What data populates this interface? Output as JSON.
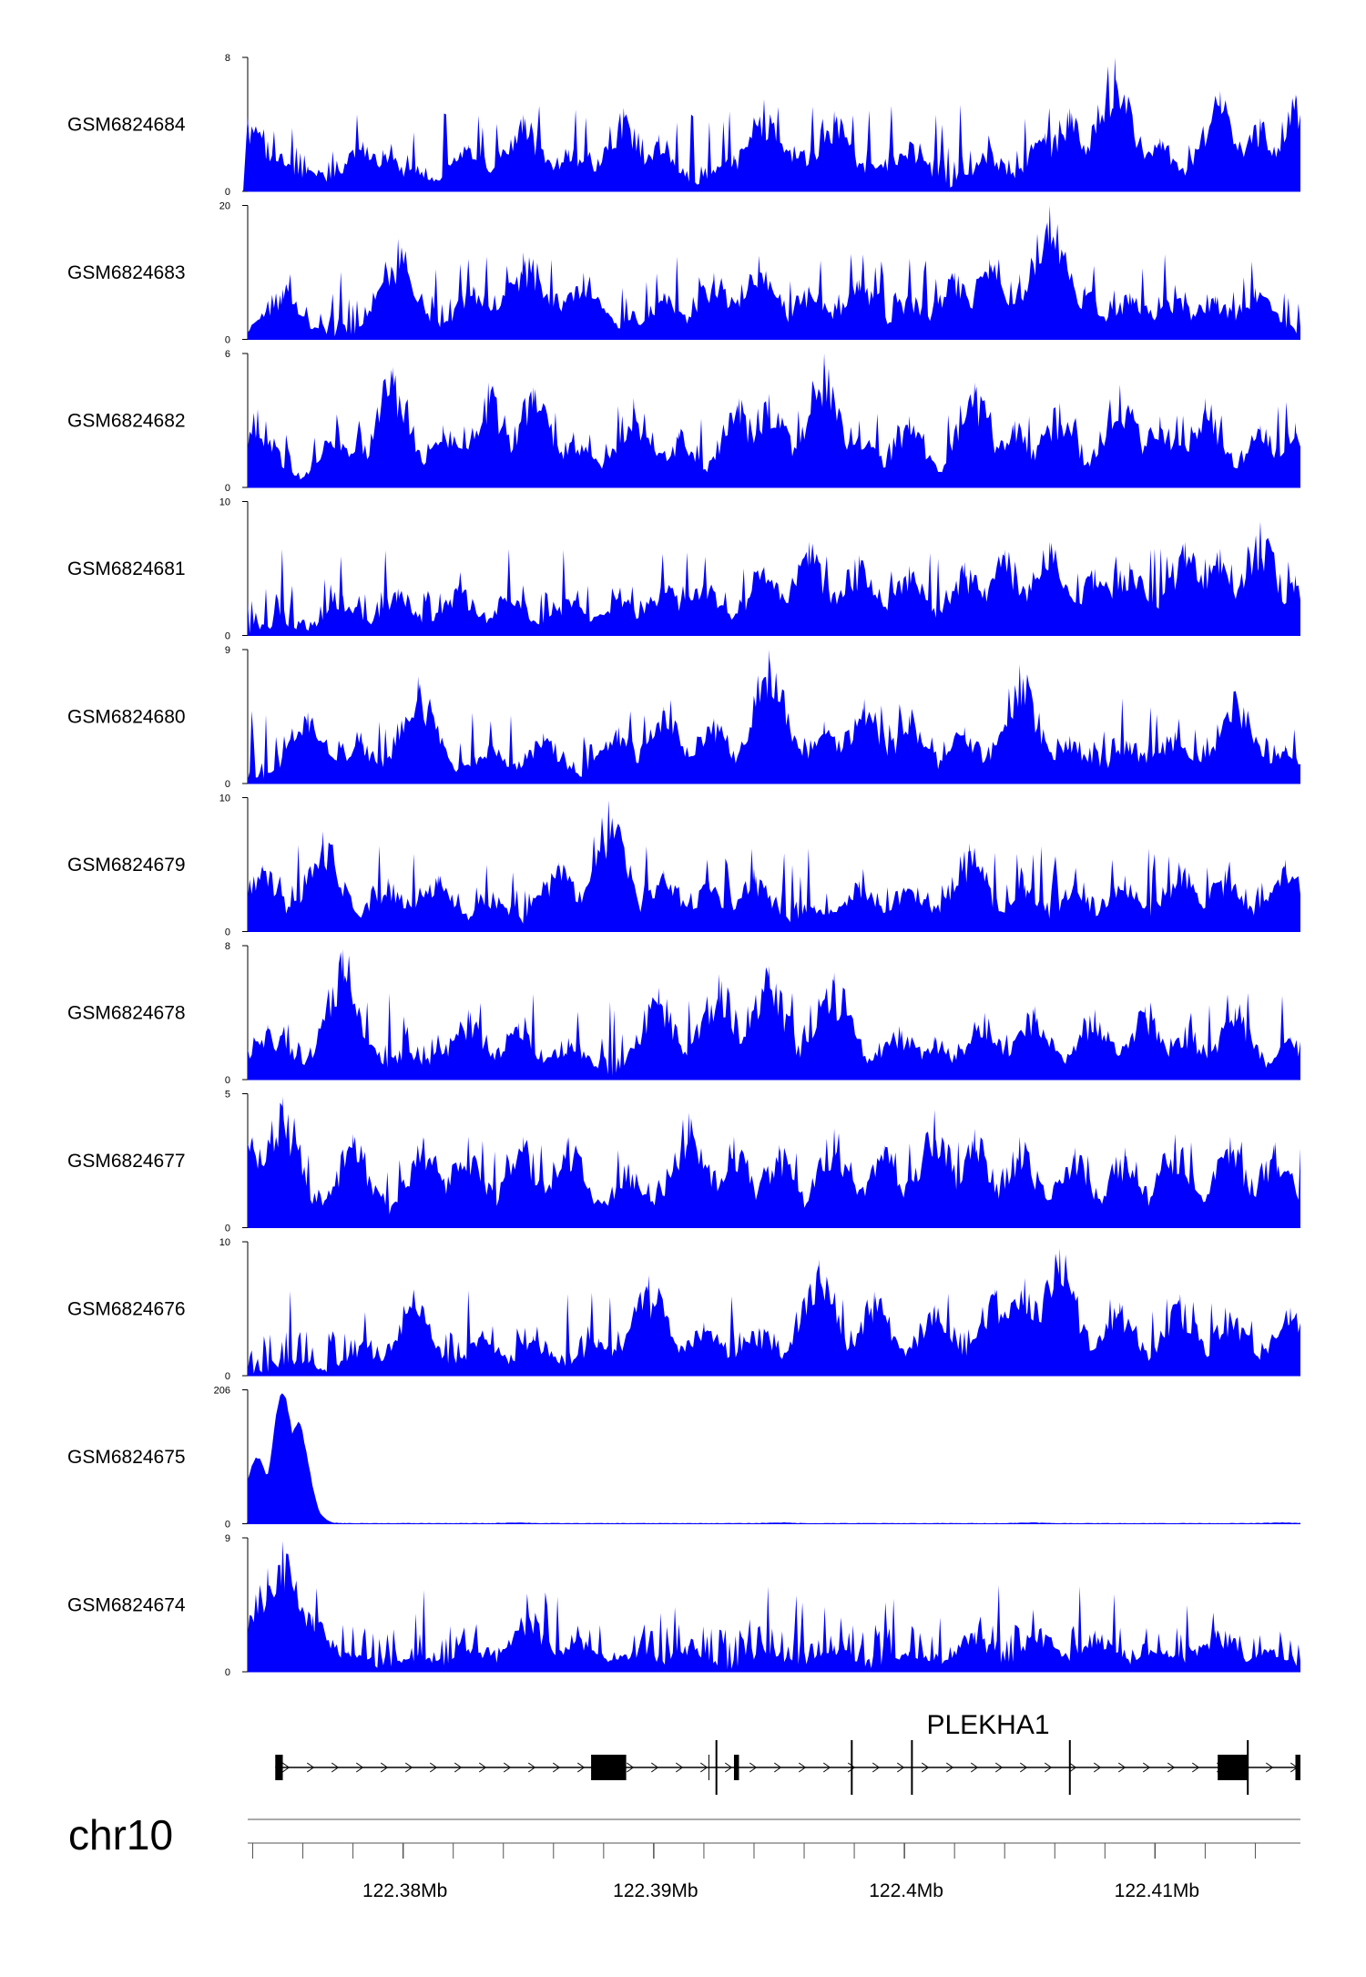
{
  "colors": {
    "signal": "#0000ff",
    "axis": "#000000",
    "gene": "#000000",
    "ruler": "#555555",
    "background": "#ffffff"
  },
  "chart_data": {
    "type": "area",
    "chromosome": "chr10",
    "x_unit": "Mb",
    "x_range": [
      122.3738,
      122.4158
    ],
    "x_ticks": [
      122.38,
      122.39,
      122.4,
      122.41
    ],
    "x_tick_labels": [
      "122.38Mb",
      "122.39Mb",
      "122.4Mb",
      "122.41Mb"
    ],
    "tracks": [
      {
        "name": "GSM6824684",
        "ymax": 8,
        "ytick_labels": [
          "8",
          "0"
        ],
        "peaks": [
          [
            122.3738,
            4.5
          ],
          [
            122.3746,
            3
          ],
          [
            122.3762,
            1.5
          ],
          [
            122.3784,
            3
          ],
          [
            122.3792,
            2.5
          ],
          [
            122.3804,
            1.4
          ],
          [
            122.3826,
            2.8
          ],
          [
            122.3848,
            4.6
          ],
          [
            122.3866,
            2.5
          ],
          [
            122.3888,
            5
          ],
          [
            122.3902,
            3.4
          ],
          [
            122.3932,
            2.2
          ],
          [
            122.3944,
            5.5
          ],
          [
            122.3956,
            2.7
          ],
          [
            122.3972,
            4.8
          ],
          [
            122.3986,
            2
          ],
          [
            122.4002,
            3
          ],
          [
            122.4034,
            2.5
          ],
          [
            122.4056,
            3.5
          ],
          [
            122.4066,
            5
          ],
          [
            122.4084,
            8
          ],
          [
            122.4102,
            3.2
          ],
          [
            122.4126,
            6
          ],
          [
            122.4142,
            4.4
          ],
          [
            122.4156,
            5.8
          ]
        ]
      },
      {
        "name": "GSM6824683",
        "ymax": 20,
        "ytick_labels": [
          "20",
          "0"
        ],
        "peaks": [
          [
            122.3752,
            7.5
          ],
          [
            122.3798,
            15
          ],
          [
            122.3828,
            8
          ],
          [
            122.3848,
            13
          ],
          [
            122.3872,
            10
          ],
          [
            122.3904,
            7
          ],
          [
            122.3924,
            10
          ],
          [
            122.3942,
            12.5
          ],
          [
            122.3962,
            8
          ],
          [
            122.3982,
            9
          ],
          [
            122.4002,
            7
          ],
          [
            122.402,
            10
          ],
          [
            122.4034,
            12
          ],
          [
            122.4046,
            9.8
          ],
          [
            122.4058,
            20
          ],
          [
            122.4072,
            8
          ],
          [
            122.409,
            7
          ],
          [
            122.4108,
            7
          ],
          [
            122.4124,
            6.5
          ],
          [
            122.414,
            7.7
          ]
        ]
      },
      {
        "name": "GSM6824682",
        "ymax": 6,
        "ytick_labels": [
          "6",
          "0"
        ],
        "peaks": [
          [
            122.3742,
            3.5
          ],
          [
            122.3774,
            2.8
          ],
          [
            122.3796,
            5.4
          ],
          [
            122.3816,
            2.8
          ],
          [
            122.3834,
            4.7
          ],
          [
            122.3852,
            4.5
          ],
          [
            122.3868,
            2.5
          ],
          [
            122.3892,
            4
          ],
          [
            122.391,
            2.5
          ],
          [
            122.3934,
            4
          ],
          [
            122.3946,
            4.2
          ],
          [
            122.3968,
            6
          ],
          [
            122.3982,
            3
          ],
          [
            122.4002,
            3.2
          ],
          [
            122.4028,
            4.7
          ],
          [
            122.4044,
            3
          ],
          [
            122.4062,
            3.8
          ],
          [
            122.4086,
            4.6
          ],
          [
            122.4102,
            3.2
          ],
          [
            122.412,
            4
          ],
          [
            122.4142,
            2.8
          ],
          [
            122.4156,
            2.9
          ]
        ]
      },
      {
        "name": "GSM6824681",
        "ymax": 10,
        "ytick_labels": [
          "10",
          "0"
        ],
        "peaks": [
          [
            122.3752,
            1
          ],
          [
            122.3776,
            3
          ],
          [
            122.3798,
            3.5
          ],
          [
            122.3822,
            3.8
          ],
          [
            122.3842,
            3
          ],
          [
            122.3866,
            2.8
          ],
          [
            122.3886,
            3.2
          ],
          [
            122.3904,
            4
          ],
          [
            122.392,
            4.2
          ],
          [
            122.3944,
            5.2
          ],
          [
            122.3962,
            7
          ],
          [
            122.3982,
            6
          ],
          [
            122.4002,
            5.2
          ],
          [
            122.4024,
            5.5
          ],
          [
            122.404,
            6.4
          ],
          [
            122.4058,
            7
          ],
          [
            122.4076,
            5
          ],
          [
            122.409,
            5.5
          ],
          [
            122.4112,
            7
          ],
          [
            122.4126,
            6.5
          ],
          [
            122.4142,
            8.5
          ],
          [
            122.4156,
            4.5
          ]
        ]
      },
      {
        "name": "GSM6824680",
        "ymax": 9,
        "ytick_labels": [
          "9",
          "0"
        ],
        "peaks": [
          [
            122.3762,
            4.8
          ],
          [
            122.3784,
            2.8
          ],
          [
            122.3806,
            7.2
          ],
          [
            122.3834,
            2.6
          ],
          [
            122.3856,
            3.4
          ],
          [
            122.3886,
            3.8
          ],
          [
            122.3904,
            5.2
          ],
          [
            122.3924,
            4.4
          ],
          [
            122.3946,
            9
          ],
          [
            122.3968,
            4.2
          ],
          [
            122.3984,
            5.7
          ],
          [
            122.4002,
            4.6
          ],
          [
            122.4024,
            3.8
          ],
          [
            122.4046,
            8
          ],
          [
            122.4066,
            3.2
          ],
          [
            122.409,
            2.8
          ],
          [
            122.4108,
            3.5
          ],
          [
            122.4132,
            6.3
          ],
          [
            122.4152,
            2.6
          ]
        ]
      },
      {
        "name": "GSM6824679",
        "ymax": 10,
        "ytick_labels": [
          "10",
          "0"
        ],
        "peaks": [
          [
            122.3744,
            5
          ],
          [
            122.3768,
            7.5
          ],
          [
            122.3794,
            4
          ],
          [
            122.3814,
            4.2
          ],
          [
            122.3836,
            3
          ],
          [
            122.3862,
            5.2
          ],
          [
            122.3882,
            9.8
          ],
          [
            122.3904,
            4.6
          ],
          [
            122.3922,
            3.8
          ],
          [
            122.394,
            4.7
          ],
          [
            122.3964,
            2
          ],
          [
            122.3982,
            3.8
          ],
          [
            122.4002,
            3.3
          ],
          [
            122.4026,
            6.6
          ],
          [
            122.4048,
            3.5
          ],
          [
            122.4068,
            3
          ],
          [
            122.4088,
            4.2
          ],
          [
            122.411,
            5
          ],
          [
            122.4128,
            4.6
          ],
          [
            122.4152,
            5.4
          ]
        ]
      },
      {
        "name": "GSM6824678",
        "ymax": 8,
        "ytick_labels": [
          "8",
          "0"
        ],
        "peaks": [
          [
            122.3746,
            3.3
          ],
          [
            122.3776,
            7.8
          ],
          [
            122.3802,
            2
          ],
          [
            122.3826,
            4.2
          ],
          [
            122.3846,
            3.4
          ],
          [
            122.3866,
            2.5
          ],
          [
            122.3902,
            5.5
          ],
          [
            122.3926,
            6.3
          ],
          [
            122.3946,
            6.8
          ],
          [
            122.3972,
            6.4
          ],
          [
            122.3998,
            3.2
          ],
          [
            122.4012,
            2.6
          ],
          [
            122.4032,
            4
          ],
          [
            122.4052,
            4.4
          ],
          [
            122.4076,
            4.2
          ],
          [
            122.4096,
            4.4
          ],
          [
            122.4112,
            3.2
          ],
          [
            122.4132,
            4.3
          ],
          [
            122.4154,
            2.6
          ]
        ]
      },
      {
        "name": "GSM6824677",
        "ymax": 5,
        "ytick_labels": [
          "5",
          "0"
        ],
        "peaks": [
          [
            122.374,
            3.4
          ],
          [
            122.3752,
            4.9
          ],
          [
            122.378,
            3.5
          ],
          [
            122.3808,
            3.4
          ],
          [
            122.3826,
            3.4
          ],
          [
            122.3848,
            3.4
          ],
          [
            122.3866,
            3.4
          ],
          [
            122.389,
            2.4
          ],
          [
            122.3914,
            4.3
          ],
          [
            122.3932,
            3.4
          ],
          [
            122.395,
            3.1
          ],
          [
            122.3972,
            3.7
          ],
          [
            122.3992,
            3.1
          ],
          [
            122.4012,
            4.4
          ],
          [
            122.4028,
            3.7
          ],
          [
            122.4046,
            3.4
          ],
          [
            122.4068,
            3
          ],
          [
            122.4088,
            3
          ],
          [
            122.4108,
            3.5
          ],
          [
            122.413,
            3.4
          ],
          [
            122.4148,
            3.2
          ]
        ]
      },
      {
        "name": "GSM6824676",
        "ymax": 10,
        "ytick_labels": [
          "10",
          "0"
        ],
        "peaks": [
          [
            122.3758,
            1.4
          ],
          [
            122.3784,
            2.5
          ],
          [
            122.3804,
            6
          ],
          [
            122.3832,
            3
          ],
          [
            122.3852,
            3
          ],
          [
            122.3878,
            2.8
          ],
          [
            122.3898,
            7.5
          ],
          [
            122.392,
            4
          ],
          [
            122.3942,
            3.6
          ],
          [
            122.3966,
            8.7
          ],
          [
            122.3988,
            6.3
          ],
          [
            122.4012,
            5.3
          ],
          [
            122.4036,
            6.5
          ],
          [
            122.4048,
            7.3
          ],
          [
            122.4062,
            9.5
          ],
          [
            122.4086,
            5.5
          ],
          [
            122.411,
            6.1
          ],
          [
            122.413,
            4.8
          ],
          [
            122.4154,
            5.1
          ]
        ]
      },
      {
        "name": "GSM6824675",
        "ymax": 206,
        "ytick_labels": [
          "206",
          "0"
        ],
        "peaks": [
          [
            122.3742,
            100
          ],
          [
            122.3752,
            196
          ],
          [
            122.3758,
            150
          ],
          [
            122.3762,
            30
          ],
          [
            122.3766,
            2
          ],
          [
            122.3845,
            1
          ],
          [
            122.395,
            1
          ],
          [
            122.405,
            1
          ],
          [
            122.415,
            1
          ]
        ]
      },
      {
        "name": "GSM6824674",
        "ymax": 9,
        "ytick_labels": [
          "9",
          "0"
        ],
        "peaks": [
          [
            122.3746,
            7
          ],
          [
            122.3752,
            8.8
          ],
          [
            122.3758,
            5
          ],
          [
            122.3764,
            3.8
          ],
          [
            122.3778,
            1.4
          ],
          [
            122.3806,
            1.2
          ],
          [
            122.3828,
            1.6
          ],
          [
            122.385,
            4
          ],
          [
            122.387,
            2.4
          ],
          [
            122.3894,
            1.6
          ],
          [
            122.3914,
            1.8
          ],
          [
            122.3946,
            1.6
          ],
          [
            122.3972,
            1.8
          ],
          [
            122.4002,
            1.4
          ],
          [
            122.4028,
            2.7
          ],
          [
            122.4054,
            2.8
          ],
          [
            122.4076,
            2.8
          ],
          [
            122.4102,
            1.7
          ],
          [
            122.4124,
            2.8
          ],
          [
            122.4146,
            1.6
          ]
        ]
      }
    ],
    "gene": {
      "name": "PLEKHA1",
      "strand": "+",
      "span": [
        122.3749,
        122.4158
      ],
      "exons": [
        [
          122.3749,
          122.3752
        ],
        [
          122.3875,
          122.3889
        ],
        [
          122.3932,
          122.3934
        ],
        [
          122.4125,
          122.4137
        ],
        [
          122.4156,
          122.4158
        ]
      ],
      "markers": [
        122.3925,
        122.3979,
        122.4003,
        122.4066,
        122.4137
      ]
    }
  }
}
